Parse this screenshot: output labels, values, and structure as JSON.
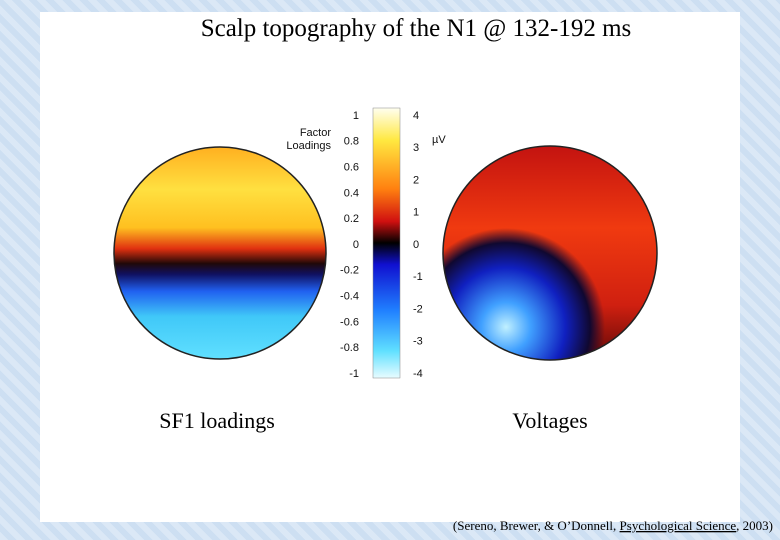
{
  "title": "Scalp topography of the N1 @ 132-192 ms",
  "colorbar": {
    "left_label": [
      "Factor",
      "Loadings"
    ],
    "left_ticks": [
      1,
      0.8,
      0.6,
      0.4,
      0.2,
      0,
      -0.2,
      -0.4,
      -0.6,
      -0.8,
      -1
    ],
    "right_label": "µV",
    "right_ticks": [
      4,
      3,
      2,
      1,
      0,
      -1,
      -2,
      -3,
      -4
    ]
  },
  "captions": [
    "SF1 loadings",
    "Voltages"
  ],
  "citation": {
    "before": "(Sereno, Brewer, & O’Donnell, ",
    "journal": "Psychological Science",
    "after": ", 2003)"
  }
}
